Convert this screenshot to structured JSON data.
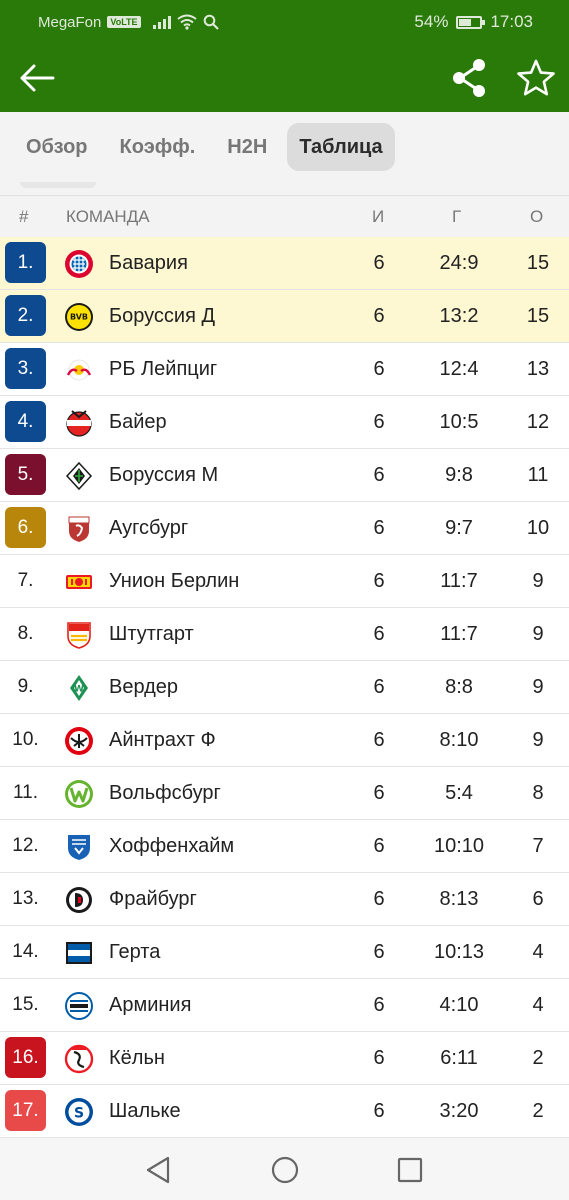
{
  "status_bar": {
    "carrier": "MegaFon",
    "volte": "VoLTE",
    "battery": "54%",
    "battery_level": 0.54,
    "time": "17:03"
  },
  "app_bar": {
    "icons": {
      "back": "arrow-left-icon",
      "share": "share-icon",
      "favorite": "star-outline-icon"
    }
  },
  "tabs": [
    {
      "label": "Обзор",
      "active": false
    },
    {
      "label": "Коэфф.",
      "active": false
    },
    {
      "label": "H2H",
      "active": false
    },
    {
      "label": "Таблица",
      "active": true
    }
  ],
  "table": {
    "headers": {
      "position": "#",
      "team": "КОМАНДА",
      "played": "И",
      "goals": "Г",
      "points": "О"
    },
    "rows": [
      {
        "pos": "1.",
        "team": "Бавария",
        "played": "6",
        "goals": "24:9",
        "points": "15"
      },
      {
        "pos": "2.",
        "team": "Боруссия Д",
        "played": "6",
        "goals": "13:2",
        "points": "15"
      },
      {
        "pos": "3.",
        "team": "РБ Лейпциг",
        "played": "6",
        "goals": "12:4",
        "points": "13"
      },
      {
        "pos": "4.",
        "team": "Байер",
        "played": "6",
        "goals": "10:5",
        "points": "12"
      },
      {
        "pos": "5.",
        "team": "Боруссия М",
        "played": "6",
        "goals": "9:8",
        "points": "11"
      },
      {
        "pos": "6.",
        "team": "Аугсбург",
        "played": "6",
        "goals": "9:7",
        "points": "10"
      },
      {
        "pos": "7.",
        "team": "Унион Берлин",
        "played": "6",
        "goals": "11:7",
        "points": "9"
      },
      {
        "pos": "8.",
        "team": "Штутгарт",
        "played": "6",
        "goals": "11:7",
        "points": "9"
      },
      {
        "pos": "9.",
        "team": "Вердер",
        "played": "6",
        "goals": "8:8",
        "points": "9"
      },
      {
        "pos": "10.",
        "team": "Айнтрахт Ф",
        "played": "6",
        "goals": "8:10",
        "points": "9"
      },
      {
        "pos": "11.",
        "team": "Вольфсбург",
        "played": "6",
        "goals": "5:4",
        "points": "8"
      },
      {
        "pos": "12.",
        "team": "Хоффенхайм",
        "played": "6",
        "goals": "10:10",
        "points": "7"
      },
      {
        "pos": "13.",
        "team": "Фрайбург",
        "played": "6",
        "goals": "8:13",
        "points": "6"
      },
      {
        "pos": "14.",
        "team": "Герта",
        "played": "6",
        "goals": "10:13",
        "points": "4"
      },
      {
        "pos": "15.",
        "team": "Арминия",
        "played": "6",
        "goals": "4:10",
        "points": "4"
      },
      {
        "pos": "16.",
        "team": "Кёльн",
        "played": "6",
        "goals": "6:11",
        "points": "2"
      },
      {
        "pos": "17.",
        "team": "Шальке",
        "played": "6",
        "goals": "3:20",
        "points": "2"
      }
    ]
  },
  "colors": {
    "header_green": "#2a7a0a",
    "champions_league": "#0d4a8f",
    "europa_league": "#7a0f2e",
    "conference_league": "#b8860b",
    "relegation_playoff": "#c8141e",
    "relegation": "#e84a4a",
    "highlight_row": "#fdf8d2"
  },
  "row_styles": {
    "badges": [
      "champions_league",
      "champions_league",
      "champions_league",
      "champions_league",
      "europa_league",
      "conference_league",
      null,
      null,
      null,
      null,
      null,
      null,
      null,
      null,
      null,
      "relegation_playoff",
      "relegation"
    ],
    "highlighted": [
      0,
      1
    ]
  },
  "nav_bar": {
    "icons": [
      "nav-back-icon",
      "nav-home-icon",
      "nav-recent-icon"
    ]
  }
}
